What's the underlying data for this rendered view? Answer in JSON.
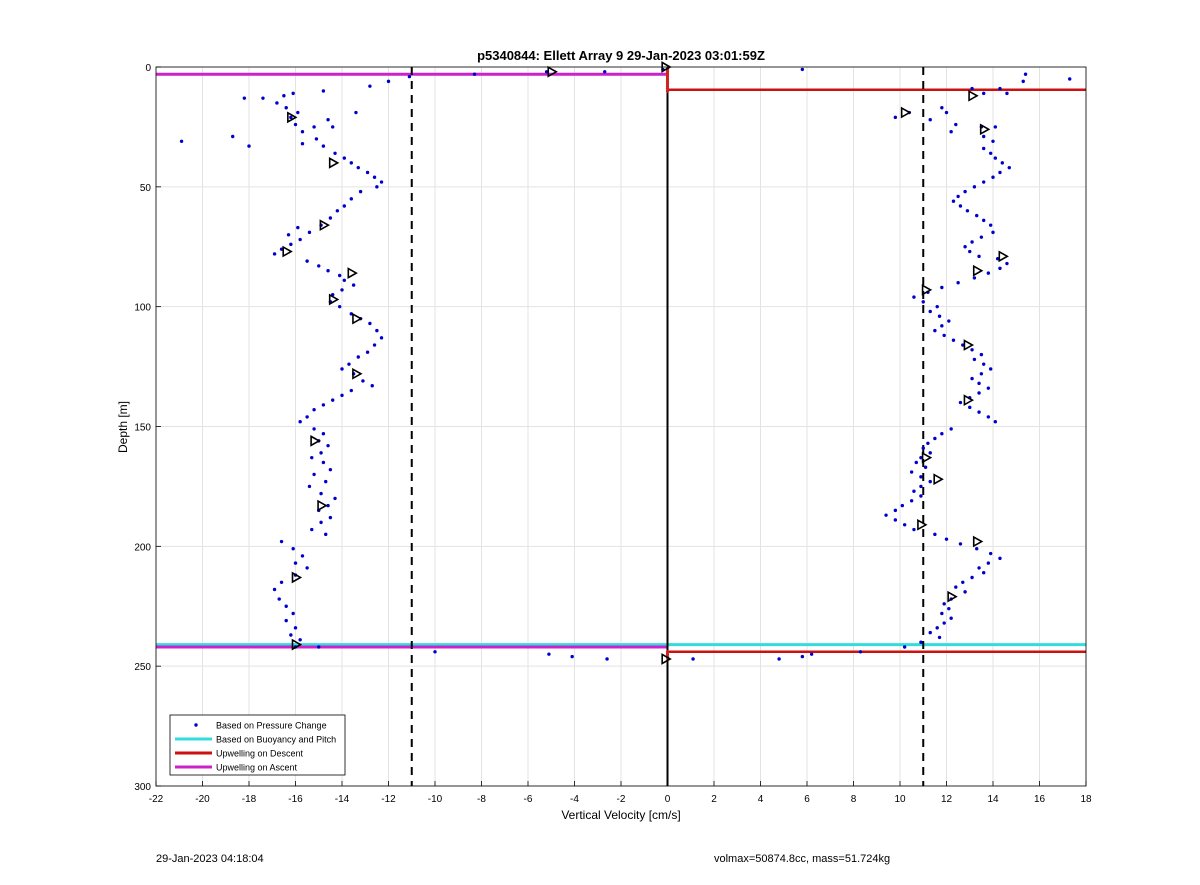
{
  "chart_data": {
    "type": "scatter",
    "title": "p5340844: Ellett Array 9 29-Jan-2023 03:01:59Z",
    "xlabel": "Vertical Velocity [cm/s]",
    "ylabel": "Depth [m]",
    "xlim": [
      -22,
      18
    ],
    "ylim": [
      0,
      300
    ],
    "y_reversed": true,
    "grid": true,
    "xticks": [
      -22,
      -20,
      -18,
      -16,
      -14,
      -12,
      -10,
      -8,
      -6,
      -4,
      -2,
      0,
      2,
      4,
      6,
      8,
      10,
      12,
      14,
      16,
      18
    ],
    "yticks": [
      0,
      50,
      100,
      150,
      200,
      250,
      300
    ],
    "legend_position": "bottom-left",
    "legend": [
      {
        "label": "Based on Pressure Change",
        "color": "#0000cc",
        "kind": "dot"
      },
      {
        "label": "Based on Buoyancy and Pitch",
        "color": "#33dddd",
        "kind": "line"
      },
      {
        "label": "Upwelling on Descent",
        "color": "#cc1111",
        "kind": "line"
      },
      {
        "label": "Upwelling on Ascent",
        "color": "#cc22cc",
        "kind": "line"
      }
    ],
    "pressure_change_descent": [
      [
        -16.1,
        11
      ],
      [
        -16.5,
        12
      ],
      [
        -16.8,
        15
      ],
      [
        -16.4,
        17
      ],
      [
        -15.9,
        19
      ],
      [
        -16.2,
        21
      ],
      [
        -16.0,
        24
      ],
      [
        -15.7,
        27
      ],
      [
        -15.2,
        25
      ],
      [
        -14.6,
        22
      ],
      [
        -14.4,
        25
      ],
      [
        -15.1,
        30
      ],
      [
        -14.8,
        33
      ],
      [
        -14.3,
        36
      ],
      [
        -13.9,
        38
      ],
      [
        -13.6,
        40
      ],
      [
        -13.3,
        42
      ],
      [
        -12.9,
        44
      ],
      [
        -12.6,
        46
      ],
      [
        -12.3,
        48
      ],
      [
        -12.5,
        50
      ],
      [
        -13.2,
        52
      ],
      [
        -13.6,
        55
      ],
      [
        -13.9,
        58
      ],
      [
        -14.2,
        60
      ],
      [
        -14.5,
        63
      ],
      [
        -14.9,
        66
      ],
      [
        -15.4,
        69
      ],
      [
        -15.8,
        72
      ],
      [
        -16.2,
        74
      ],
      [
        -16.6,
        76
      ],
      [
        -16.9,
        78
      ],
      [
        -16.3,
        70
      ],
      [
        -15.9,
        67
      ],
      [
        -15.5,
        81
      ],
      [
        -15.0,
        83
      ],
      [
        -14.6,
        85
      ],
      [
        -14.1,
        87
      ],
      [
        -13.9,
        89
      ],
      [
        -13.5,
        91
      ],
      [
        -14.0,
        93
      ],
      [
        -14.4,
        95
      ],
      [
        -14.5,
        98
      ],
      [
        -14.1,
        100
      ],
      [
        -13.6,
        103
      ],
      [
        -13.2,
        105
      ],
      [
        -12.8,
        107
      ],
      [
        -12.5,
        110
      ],
      [
        -12.3,
        113
      ],
      [
        -12.6,
        116
      ],
      [
        -12.9,
        119
      ],
      [
        -13.3,
        121
      ],
      [
        -13.7,
        124
      ],
      [
        -14.0,
        126
      ],
      [
        -13.5,
        128
      ],
      [
        -13.1,
        131
      ],
      [
        -12.7,
        133
      ],
      [
        -13.6,
        135
      ],
      [
        -14.0,
        137
      ],
      [
        -14.4,
        139
      ],
      [
        -14.8,
        141
      ],
      [
        -15.2,
        143
      ],
      [
        -15.5,
        146
      ],
      [
        -15.8,
        148
      ],
      [
        -15.2,
        151
      ],
      [
        -14.8,
        153
      ],
      [
        -15.0,
        156
      ],
      [
        -14.6,
        158
      ],
      [
        -14.9,
        161
      ],
      [
        -15.3,
        163
      ],
      [
        -14.8,
        165
      ],
      [
        -14.5,
        168
      ],
      [
        -15.2,
        170
      ],
      [
        -14.7,
        173
      ],
      [
        -15.4,
        175
      ],
      [
        -14.9,
        178
      ],
      [
        -14.3,
        180
      ],
      [
        -14.6,
        183
      ],
      [
        -15.0,
        185
      ],
      [
        -14.5,
        188
      ],
      [
        -14.9,
        190
      ],
      [
        -15.3,
        193
      ],
      [
        -14.7,
        195
      ],
      [
        -16.6,
        198
      ],
      [
        -16.1,
        201
      ],
      [
        -15.7,
        204
      ],
      [
        -16.0,
        207
      ],
      [
        -15.5,
        209
      ],
      [
        -16.0,
        212
      ],
      [
        -16.6,
        215
      ],
      [
        -16.9,
        218
      ],
      [
        -16.7,
        222
      ],
      [
        -16.4,
        225
      ],
      [
        -16.1,
        228
      ],
      [
        -16.4,
        231
      ],
      [
        -16.0,
        234
      ],
      [
        -16.2,
        237
      ],
      [
        -15.8,
        239
      ],
      [
        -16.0,
        242
      ],
      [
        -20.9,
        31
      ],
      [
        -18.7,
        29
      ],
      [
        -18.0,
        33
      ],
      [
        -18.2,
        13
      ],
      [
        -17.4,
        13
      ],
      [
        -14.8,
        10
      ],
      [
        -13.4,
        19
      ],
      [
        -15.7,
        32
      ],
      [
        -12.8,
        8
      ],
      [
        -12.0,
        6
      ],
      [
        -11.1,
        4
      ],
      [
        -8.3,
        3
      ],
      [
        -5.2,
        2
      ],
      [
        -2.7,
        2
      ],
      [
        -0.2,
        1
      ],
      [
        -10.0,
        244
      ],
      [
        -5.1,
        245
      ],
      [
        -4.1,
        246
      ],
      [
        -2.6,
        247
      ],
      [
        1.1,
        247
      ],
      [
        -15.0,
        242
      ]
    ],
    "pressure_change_ascent": [
      [
        13.1,
        9
      ],
      [
        13.6,
        11
      ],
      [
        14.3,
        9
      ],
      [
        14.6,
        11
      ],
      [
        15.4,
        3
      ],
      [
        15.3,
        6
      ],
      [
        17.3,
        5
      ],
      [
        5.8,
        1
      ],
      [
        11.8,
        17
      ],
      [
        12.0,
        19
      ],
      [
        11.3,
        22
      ],
      [
        12.4,
        24
      ],
      [
        12.2,
        27
      ],
      [
        13.5,
        25
      ],
      [
        14.1,
        25
      ],
      [
        13.6,
        29
      ],
      [
        14.0,
        31
      ],
      [
        13.6,
        34
      ],
      [
        13.9,
        36
      ],
      [
        14.1,
        38
      ],
      [
        14.4,
        40
      ],
      [
        14.7,
        42
      ],
      [
        14.3,
        44
      ],
      [
        14.0,
        46
      ],
      [
        13.6,
        48
      ],
      [
        13.2,
        50
      ],
      [
        12.8,
        52
      ],
      [
        12.5,
        54
      ],
      [
        12.3,
        56
      ],
      [
        12.6,
        58
      ],
      [
        12.9,
        60
      ],
      [
        13.3,
        62
      ],
      [
        13.6,
        64
      ],
      [
        13.9,
        66
      ],
      [
        14.0,
        69
      ],
      [
        13.5,
        71
      ],
      [
        13.1,
        73
      ],
      [
        12.8,
        75
      ],
      [
        13.0,
        77
      ],
      [
        13.4,
        79
      ],
      [
        14.2,
        80
      ],
      [
        14.6,
        82
      ],
      [
        14.3,
        84
      ],
      [
        13.8,
        86
      ],
      [
        13.2,
        88
      ],
      [
        12.5,
        90
      ],
      [
        11.8,
        92
      ],
      [
        11.2,
        94
      ],
      [
        10.6,
        96
      ],
      [
        11.0,
        98
      ],
      [
        11.6,
        100
      ],
      [
        11.3,
        102
      ],
      [
        11.7,
        104
      ],
      [
        12.1,
        106
      ],
      [
        11.8,
        108
      ],
      [
        11.5,
        110
      ],
      [
        11.9,
        112
      ],
      [
        12.3,
        114
      ],
      [
        12.7,
        116
      ],
      [
        13.1,
        118
      ],
      [
        13.5,
        120
      ],
      [
        13.2,
        122
      ],
      [
        13.6,
        124
      ],
      [
        13.9,
        126
      ],
      [
        13.5,
        128
      ],
      [
        13.1,
        130
      ],
      [
        13.4,
        132
      ],
      [
        13.8,
        134
      ],
      [
        13.4,
        136
      ],
      [
        13.0,
        138
      ],
      [
        12.6,
        140
      ],
      [
        13.0,
        142
      ],
      [
        13.4,
        144
      ],
      [
        13.8,
        146
      ],
      [
        14.1,
        148
      ],
      [
        12.2,
        151
      ],
      [
        11.8,
        153
      ],
      [
        11.5,
        155
      ],
      [
        11.2,
        157
      ],
      [
        11.0,
        159
      ],
      [
        11.3,
        161
      ],
      [
        10.9,
        163
      ],
      [
        10.7,
        165
      ],
      [
        11.1,
        167
      ],
      [
        10.5,
        169
      ],
      [
        10.9,
        171
      ],
      [
        11.3,
        173
      ],
      [
        10.9,
        175
      ],
      [
        10.6,
        177
      ],
      [
        10.9,
        179
      ],
      [
        10.5,
        181
      ],
      [
        10.1,
        183
      ],
      [
        9.8,
        185
      ],
      [
        9.4,
        187
      ],
      [
        9.8,
        189
      ],
      [
        10.2,
        191
      ],
      [
        10.6,
        193
      ],
      [
        11.5,
        195
      ],
      [
        12.0,
        197
      ],
      [
        12.6,
        199
      ],
      [
        13.3,
        201
      ],
      [
        13.9,
        203
      ],
      [
        14.3,
        205
      ],
      [
        13.8,
        207
      ],
      [
        13.4,
        209
      ],
      [
        13.6,
        211
      ],
      [
        13.1,
        213
      ],
      [
        12.7,
        215
      ],
      [
        12.4,
        217
      ],
      [
        12.8,
        219
      ],
      [
        12.2,
        222
      ],
      [
        11.9,
        224
      ],
      [
        12.1,
        226
      ],
      [
        11.8,
        228
      ],
      [
        12.2,
        230
      ],
      [
        11.9,
        232
      ],
      [
        11.6,
        234
      ],
      [
        11.3,
        236
      ],
      [
        11.7,
        238
      ],
      [
        10.9,
        240
      ],
      [
        10.2,
        242
      ],
      [
        9.8,
        21
      ],
      [
        10.4,
        19
      ],
      [
        8.3,
        244
      ],
      [
        6.2,
        245
      ],
      [
        5.8,
        246
      ],
      [
        4.8,
        247
      ]
    ],
    "pressure_change_near_zero": [
      [
        0,
        1
      ],
      [
        0,
        2
      ],
      [
        0,
        3
      ],
      [
        0,
        4
      ],
      [
        0,
        5
      ],
      [
        0,
        6
      ],
      [
        0,
        7
      ],
      [
        0,
        8
      ],
      [
        0,
        9
      ],
      [
        0,
        10
      ],
      [
        0,
        244
      ],
      [
        0,
        245
      ],
      [
        0,
        246
      ]
    ],
    "buoyancy_pitch_markers": [
      [
        -5.0,
        2
      ],
      [
        -0.1,
        0
      ],
      [
        -16.2,
        21
      ],
      [
        -14.4,
        40
      ],
      [
        -14.8,
        66
      ],
      [
        -16.4,
        77
      ],
      [
        -13.6,
        86
      ],
      [
        -14.4,
        97
      ],
      [
        -13.4,
        105
      ],
      [
        -13.4,
        128
      ],
      [
        -15.2,
        156
      ],
      [
        -14.9,
        183
      ],
      [
        -16.0,
        213
      ],
      [
        -16.0,
        241
      ],
      [
        -0.1,
        247
      ],
      [
        10.2,
        19
      ],
      [
        13.1,
        12
      ],
      [
        13.6,
        26
      ],
      [
        14.4,
        79
      ],
      [
        13.3,
        85
      ],
      [
        11.1,
        93
      ],
      [
        12.9,
        116
      ],
      [
        12.9,
        139
      ],
      [
        11.1,
        163
      ],
      [
        11.6,
        172
      ],
      [
        10.9,
        191
      ],
      [
        13.3,
        198
      ],
      [
        12.2,
        221
      ]
    ],
    "reference_lines": [
      {
        "name": "",
        "x": [
          -22,
          0
        ],
        "y": [
          3,
          3
        ],
        "color": "#cc22cc",
        "width": 3
      },
      {
        "name": "",
        "x": [
          0,
          18
        ],
        "y": [
          9.5,
          9.5
        ],
        "color": "#cc1111",
        "width": 2.5
      },
      {
        "name": "",
        "x": [
          -22,
          18
        ],
        "y": [
          241,
          241
        ],
        "color": "#33dddd",
        "width": 3
      },
      {
        "name": "",
        "x": [
          -22,
          0
        ],
        "y": [
          242,
          242
        ],
        "color": "#cc22cc",
        "width": 3
      },
      {
        "name": "",
        "x": [
          0,
          18
        ],
        "y": [
          244,
          244
        ],
        "color": "#cc1111",
        "width": 2.5
      }
    ],
    "vertical_lines": [
      {
        "x": -11,
        "style": "dashed",
        "color": "#000000"
      },
      {
        "x": 0,
        "style": "solid",
        "color": "#000000"
      },
      {
        "x": 11,
        "style": "dashed",
        "color": "#000000"
      }
    ],
    "red_segments": [
      {
        "x": [
          0,
          0
        ],
        "y": [
          0,
          9
        ]
      },
      {
        "x": [
          0,
          0
        ],
        "y": [
          244,
          247
        ]
      }
    ]
  },
  "footer": {
    "left": "29-Jan-2023 04:18:04",
    "right": "volmax=50874.8cc, mass=51.724kg"
  }
}
